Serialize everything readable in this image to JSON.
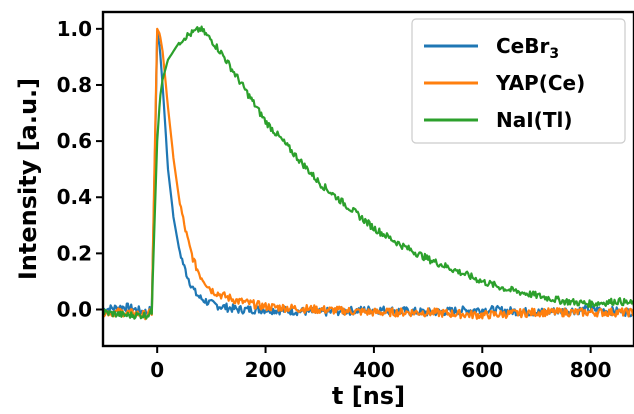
{
  "chart_data": {
    "type": "line",
    "xlabel": "t [ns]",
    "ylabel": "Intensity [a.u.]",
    "xlim": [
      -100,
      880
    ],
    "ylim": [
      -0.13,
      1.06
    ],
    "xticks": [
      0,
      200,
      400,
      600,
      800
    ],
    "yticks": [
      0.0,
      0.2,
      0.4,
      0.6,
      0.8,
      1.0
    ],
    "xtick_labels": [
      "0",
      "200",
      "400",
      "600",
      "800"
    ],
    "ytick_labels": [
      "0.0",
      "0.2",
      "0.4",
      "0.6",
      "0.8",
      "1.0"
    ],
    "grid": false,
    "legend_position": "top-right",
    "series": [
      {
        "name": "CeBr",
        "name_subscript": "3",
        "color": "#1f77b4",
        "x": [
          -100,
          -60,
          -20,
          -10,
          -5,
          0,
          5,
          10,
          15,
          20,
          30,
          40,
          50,
          60,
          70,
          80,
          100,
          120,
          150,
          200,
          300,
          400,
          500,
          600,
          700,
          800,
          880
        ],
        "y": [
          0.0,
          0.01,
          -0.01,
          0.0,
          0.45,
          0.99,
          0.93,
          0.8,
          0.65,
          0.5,
          0.33,
          0.22,
          0.15,
          0.1,
          0.06,
          0.04,
          0.02,
          0.01,
          0.0,
          0.0,
          -0.01,
          0.0,
          -0.01,
          0.0,
          -0.01,
          0.0,
          -0.01
        ]
      },
      {
        "name": "YAP(Ce)",
        "color": "#ff7f0e",
        "x": [
          -100,
          -60,
          -20,
          -10,
          -5,
          0,
          5,
          10,
          15,
          20,
          30,
          40,
          50,
          60,
          70,
          80,
          100,
          120,
          150,
          200,
          300,
          400,
          500,
          600,
          700,
          800,
          880
        ],
        "y": [
          -0.01,
          -0.01,
          -0.02,
          -0.01,
          0.5,
          1.0,
          0.98,
          0.92,
          0.82,
          0.72,
          0.54,
          0.4,
          0.3,
          0.22,
          0.16,
          0.12,
          0.07,
          0.05,
          0.03,
          0.01,
          0.0,
          -0.01,
          -0.01,
          -0.02,
          -0.01,
          -0.01,
          -0.01
        ]
      },
      {
        "name": "NaI(Tl)",
        "color": "#2ca02c",
        "x": [
          -100,
          -60,
          -20,
          -10,
          -5,
          0,
          5,
          10,
          20,
          30,
          40,
          50,
          60,
          70,
          80,
          100,
          120,
          150,
          200,
          250,
          300,
          350,
          400,
          450,
          500,
          550,
          600,
          650,
          700,
          750,
          800,
          850,
          880
        ],
        "y": [
          -0.01,
          -0.02,
          -0.02,
          -0.01,
          0.3,
          0.6,
          0.75,
          0.82,
          0.89,
          0.92,
          0.95,
          0.97,
          0.98,
          0.99,
          1.0,
          0.96,
          0.91,
          0.82,
          0.67,
          0.56,
          0.45,
          0.37,
          0.29,
          0.23,
          0.18,
          0.14,
          0.1,
          0.07,
          0.05,
          0.03,
          0.02,
          0.03,
          0.02
        ]
      }
    ]
  }
}
